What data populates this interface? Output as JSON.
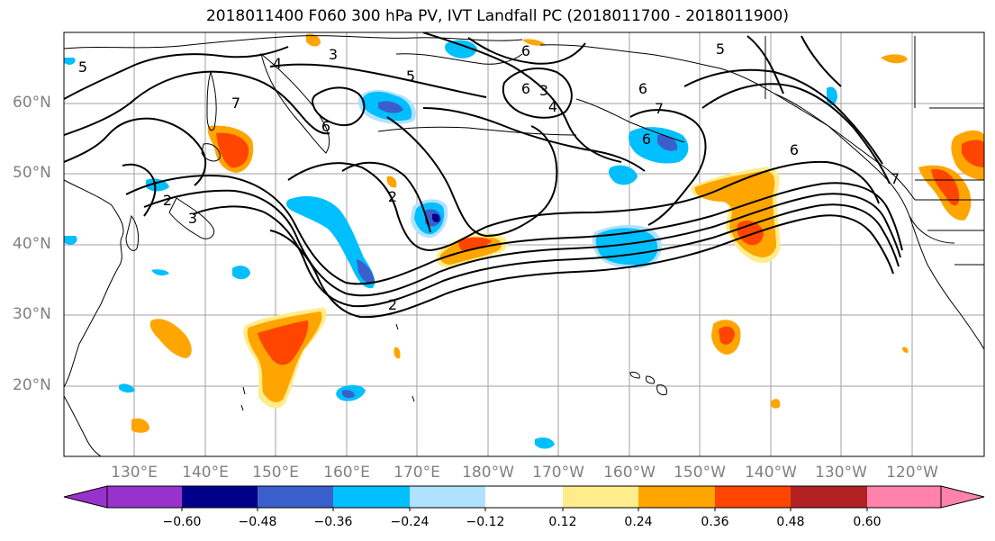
{
  "title": "2018011400 F060 300 hPa PV, IVT Landfall PC (2018011700 - 2018011900)",
  "lat_labels": [
    "60°N",
    "50°N",
    "40°N",
    "30°N",
    "20°N"
  ],
  "lon_labels": [
    "130°E",
    "140°E",
    "150°E",
    "160°E",
    "170°E",
    "180°W",
    "170°W",
    "160°W",
    "150°W",
    "140°W",
    "130°W",
    "120°W"
  ],
  "contour_labels": [
    "5",
    "4",
    "3",
    "5",
    "6",
    "6",
    "6",
    "3",
    "4",
    "6",
    "5",
    "7",
    "2",
    "3",
    "2",
    "6",
    "2",
    "6",
    "7",
    "7"
  ],
  "colorbar": {
    "ticks": [
      "−0.60",
      "−0.48",
      "−0.36",
      "−0.24",
      "−0.12",
      "0.12",
      "0.24",
      "0.36",
      "0.48",
      "0.60"
    ],
    "colors": [
      "#9932cc",
      "#00008b",
      "#3a5fcd",
      "#00bfff",
      "#b0e2ff",
      "#ffffff",
      "#ffec8b",
      "#ffa500",
      "#ff4500",
      "#b22222",
      "#ff82ab"
    ]
  },
  "fill_colors": {
    "orange": "#ffa500",
    "red": "#ff4500",
    "yellow": "#ffec8b",
    "lightblue": "#b0e2ff",
    "cyan": "#00bfff",
    "blue": "#3a5fcd",
    "navy": "#00008b"
  }
}
